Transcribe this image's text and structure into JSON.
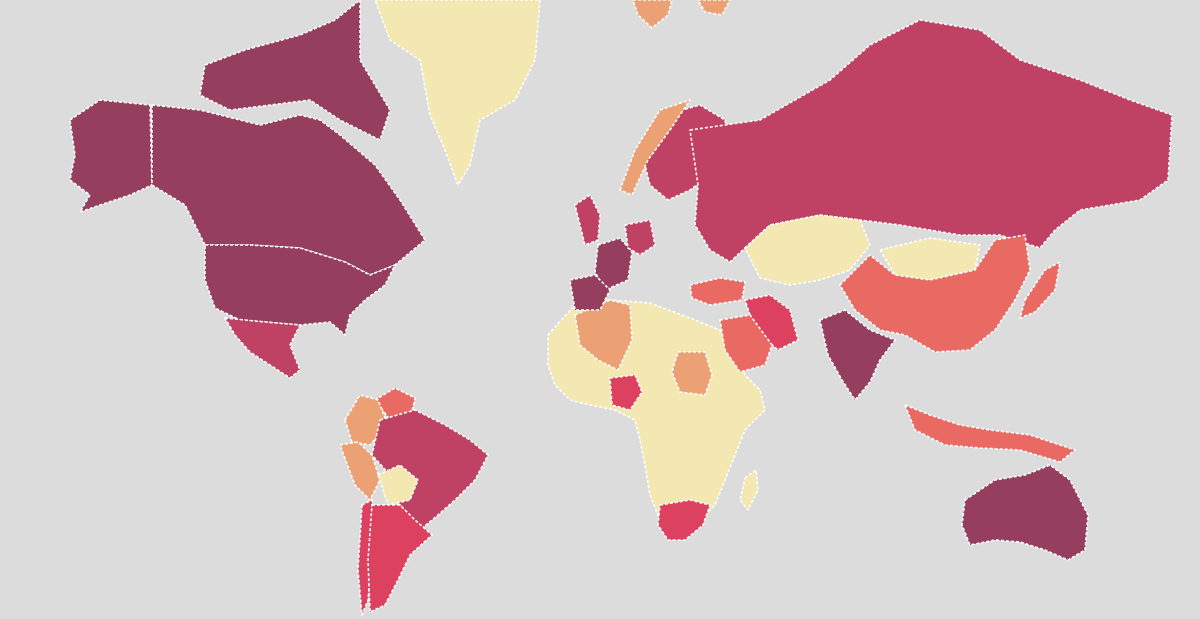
{
  "map": {
    "background": "#dcdcdc",
    "border_color": "#ffffff",
    "legend": []
  },
  "palette": {
    "darkest": "#963e5d",
    "dark": "#bf4163",
    "red": "#dc4160",
    "coral": "#e86a63",
    "orange": "#eba173",
    "light_orange": "#f0c690",
    "pale": "#f3e8b2"
  },
  "countries": [
    {
      "name": "canada",
      "fill": "darkest"
    },
    {
      "name": "alaska",
      "fill": "darkest"
    },
    {
      "name": "united-states",
      "fill": "darkest"
    },
    {
      "name": "greenland",
      "fill": "pale"
    },
    {
      "name": "mexico",
      "fill": "dark"
    },
    {
      "name": "brazil",
      "fill": "dark"
    },
    {
      "name": "argentina",
      "fill": "red"
    },
    {
      "name": "russia",
      "fill": "dark"
    },
    {
      "name": "china",
      "fill": "coral"
    },
    {
      "name": "india",
      "fill": "darkest"
    },
    {
      "name": "australia",
      "fill": "darkest"
    },
    {
      "name": "nigeria",
      "fill": "red"
    },
    {
      "name": "south-africa",
      "fill": "red"
    },
    {
      "name": "iran",
      "fill": "red"
    },
    {
      "name": "saudi-arabia",
      "fill": "coral"
    },
    {
      "name": "algeria",
      "fill": "orange"
    },
    {
      "name": "sudan",
      "fill": "orange"
    },
    {
      "name": "kazakhstan",
      "fill": "pale"
    },
    {
      "name": "mongolia",
      "fill": "pale"
    },
    {
      "name": "indonesia",
      "fill": "coral"
    },
    {
      "name": "japan",
      "fill": "coral"
    },
    {
      "name": "france",
      "fill": "darkest"
    },
    {
      "name": "spain",
      "fill": "darkest"
    },
    {
      "name": "united-kingdom",
      "fill": "dark"
    },
    {
      "name": "germany",
      "fill": "dark"
    },
    {
      "name": "scandinavia",
      "fill": "dark"
    },
    {
      "name": "norway",
      "fill": "orange"
    },
    {
      "name": "turkey",
      "fill": "coral"
    },
    {
      "name": "colombia",
      "fill": "orange"
    },
    {
      "name": "peru",
      "fill": "orange"
    },
    {
      "name": "venezuela",
      "fill": "coral"
    },
    {
      "name": "chile",
      "fill": "red"
    },
    {
      "name": "bolivia",
      "fill": "pale"
    },
    {
      "name": "africa-rest",
      "fill": "pale"
    },
    {
      "name": "madagascar",
      "fill": "pale"
    },
    {
      "name": "iceland",
      "fill": "orange"
    },
    {
      "name": "arctic-islands",
      "fill": "darkest"
    },
    {
      "name": "svalbard",
      "fill": "orange"
    }
  ]
}
